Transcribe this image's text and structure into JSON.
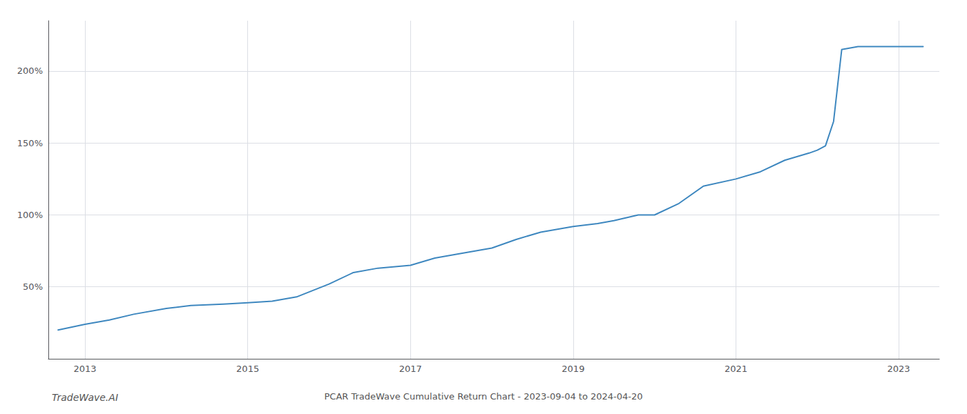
{
  "chart_data": {
    "type": "line",
    "title": "PCAR TradeWave Cumulative Return Chart - 2023-09-04 to 2024-04-20",
    "annotations": [
      "TradeWave.AI"
    ],
    "x": [
      2012.67,
      2013.0,
      2013.3,
      2013.6,
      2014.0,
      2014.3,
      2014.7,
      2015.0,
      2015.3,
      2015.6,
      2016.0,
      2016.3,
      2016.6,
      2017.0,
      2017.3,
      2017.6,
      2018.0,
      2018.3,
      2018.6,
      2019.0,
      2019.3,
      2019.5,
      2019.8,
      2020.0,
      2020.3,
      2020.6,
      2021.0,
      2021.3,
      2021.6,
      2021.9,
      2022.0,
      2022.1,
      2022.2,
      2022.3,
      2022.5,
      2022.8,
      2023.0,
      2023.3
    ],
    "values": [
      20,
      24,
      27,
      31,
      35,
      37,
      38,
      39,
      40,
      43,
      52,
      60,
      63,
      65,
      70,
      73,
      77,
      83,
      88,
      92,
      94,
      96,
      100,
      100,
      108,
      120,
      125,
      130,
      138,
      143,
      145,
      148,
      165,
      215,
      217,
      217,
      217,
      217
    ],
    "color": "#3d87bf",
    "xlim": [
      2012.55,
      2023.5
    ],
    "xticks": [
      2013,
      2015,
      2017,
      2019,
      2021,
      2023
    ],
    "ylim": [
      0,
      235
    ],
    "yticks": [
      {
        "value": 50,
        "label": "50%"
      },
      {
        "value": 100,
        "label": "100%"
      },
      {
        "value": 150,
        "label": "150%"
      },
      {
        "value": 200,
        "label": "200%"
      }
    ],
    "grid": true
  }
}
